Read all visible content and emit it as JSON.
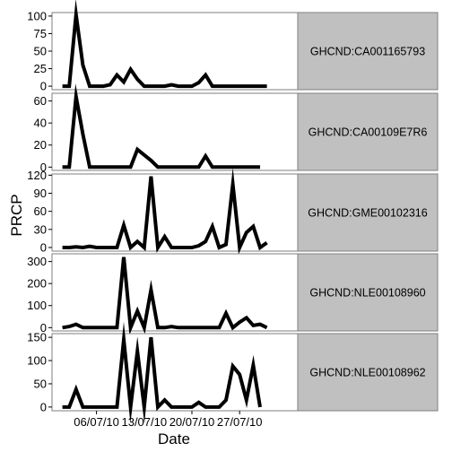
{
  "chart_data": {
    "type": "line",
    "xlabel": "Date",
    "ylabel": "PRCP",
    "x_tick_labels": [
      "06/07/10",
      "13/07/10",
      "20/07/10",
      "27/07/10"
    ],
    "x_tick_days": [
      6,
      13,
      20,
      27
    ],
    "xlim": [
      0,
      35
    ],
    "grid": false,
    "line_color": "#000000",
    "strip_color": "#c0c0c0",
    "panels": [
      {
        "strip": "GHCND:CA001165793",
        "ylim": [
          -5,
          105
        ],
        "yticks": [
          0,
          25,
          50,
          75,
          100
        ],
        "x": [
          1,
          2,
          3,
          4,
          5,
          6,
          7,
          8,
          9,
          10,
          11,
          12,
          13,
          14,
          15,
          16,
          17,
          18,
          19,
          20,
          21,
          22,
          23,
          24,
          25,
          26,
          27,
          28,
          29,
          30,
          31
        ],
        "values": [
          0,
          0,
          102,
          30,
          0,
          0,
          0,
          2,
          16,
          6,
          24,
          10,
          0,
          0,
          0,
          0,
          2,
          0,
          0,
          0,
          5,
          16,
          0,
          0,
          0,
          0,
          0,
          0,
          0,
          0,
          0
        ]
      },
      {
        "strip": "GHCND:CA00109E7R6",
        "ylim": [
          -3,
          67
        ],
        "yticks": [
          0,
          20,
          40,
          60
        ],
        "x": [
          1,
          2,
          3,
          4,
          5,
          6,
          7,
          8,
          9,
          10,
          11,
          12,
          13,
          14,
          15,
          16,
          17,
          18,
          19,
          20,
          21,
          22,
          23,
          24,
          25,
          26,
          27,
          28,
          29,
          30
        ],
        "values": [
          0,
          0,
          64,
          30,
          0,
          0,
          0,
          0,
          0,
          0,
          0,
          16,
          11,
          6,
          0,
          0,
          0,
          0,
          0,
          0,
          0,
          10,
          0,
          0,
          0,
          0,
          0,
          0,
          0,
          0
        ]
      },
      {
        "strip": "GHCND:GME00102316",
        "ylim": [
          -6,
          122
        ],
        "yticks": [
          0,
          30,
          60,
          90,
          120
        ],
        "x": [
          1,
          2,
          3,
          4,
          5,
          6,
          7,
          8,
          9,
          10,
          11,
          12,
          13,
          14,
          15,
          16,
          17,
          18,
          19,
          20,
          21,
          22,
          23,
          24,
          25,
          26,
          27,
          28,
          29,
          30,
          31
        ],
        "values": [
          0,
          0,
          1,
          0,
          2,
          0,
          0,
          0,
          0,
          37,
          0,
          10,
          0,
          118,
          0,
          18,
          0,
          0,
          0,
          0,
          3,
          10,
          35,
          0,
          5,
          105,
          0,
          25,
          35,
          0,
          8
        ]
      },
      {
        "strip": "GHCND:NLE00108960",
        "ylim": [
          -15,
          335
        ],
        "yticks": [
          0,
          100,
          200,
          300
        ],
        "x": [
          1,
          2,
          3,
          4,
          5,
          6,
          7,
          8,
          9,
          10,
          11,
          12,
          13,
          14,
          15,
          16,
          17,
          18,
          19,
          20,
          21,
          22,
          23,
          24,
          25,
          26,
          27,
          28,
          29,
          30,
          31
        ],
        "values": [
          0,
          5,
          15,
          0,
          0,
          0,
          0,
          0,
          0,
          320,
          0,
          75,
          0,
          172,
          0,
          0,
          5,
          0,
          0,
          0,
          0,
          0,
          0,
          0,
          65,
          0,
          25,
          45,
          10,
          15,
          0
        ]
      },
      {
        "strip": "GHCND:NLE00108962",
        "ylim": [
          -8,
          158
        ],
        "yticks": [
          0,
          50,
          100,
          150
        ],
        "x": [
          1,
          2,
          3,
          4,
          5,
          6,
          7,
          8,
          9,
          10,
          11,
          12,
          13,
          14,
          15,
          16,
          17,
          18,
          19,
          20,
          21,
          22,
          23,
          24,
          25,
          26,
          27,
          28,
          29,
          30
        ],
        "values": [
          0,
          0,
          38,
          0,
          0,
          0,
          0,
          0,
          0,
          145,
          0,
          120,
          0,
          150,
          0,
          15,
          0,
          0,
          0,
          0,
          10,
          0,
          0,
          0,
          15,
          88,
          70,
          15,
          90,
          0
        ]
      }
    ]
  }
}
